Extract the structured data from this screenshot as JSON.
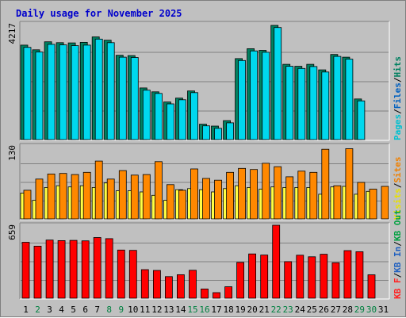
{
  "chart_data": {
    "type": "bar",
    "title": "Daily usage for November 2025",
    "days": [
      "1",
      "2",
      "3",
      "4",
      "5",
      "6",
      "7",
      "8",
      "9",
      "10",
      "11",
      "12",
      "13",
      "14",
      "15",
      "16",
      "17",
      "18",
      "19",
      "20",
      "21",
      "22",
      "23",
      "24",
      "25",
      "26",
      "27",
      "28",
      "29",
      "30",
      "31"
    ],
    "weekend_days": [
      "2",
      "8",
      "9",
      "15",
      "16",
      "22",
      "23",
      "29",
      "30"
    ],
    "colors": {
      "title": "#0000cc",
      "day_label": "#000000",
      "weekend_label": "#008040",
      "slash": "#000000"
    },
    "panels": [
      {
        "ymax_label": "4217",
        "ymax": 4217,
        "legend": [
          {
            "label": "Pages",
            "color": "#00c0d0"
          },
          {
            "label": "Files",
            "color": "#0060c0"
          },
          {
            "label": "Hits",
            "color": "#008060"
          }
        ],
        "series": [
          {
            "name": "Hits",
            "color": "#008060",
            "values": [
              3440,
              3270,
              3560,
              3530,
              3520,
              3540,
              3740,
              3620,
              3070,
              3060,
              1880,
              1740,
              1370,
              1510,
              1770,
              560,
              490,
              690,
              2950,
              3310,
              3250,
              4160,
              2740,
              2670,
              2740,
              2540,
              3100,
              3000,
              1480,
              0,
              0
            ]
          },
          {
            "name": "Pages",
            "color": "#00d8ee",
            "values": [
              3360,
              3190,
              3470,
              3450,
              3420,
              3440,
              3660,
              3530,
              3000,
              2990,
              1800,
              1680,
              1300,
              1450,
              1710,
              500,
              410,
              610,
              2880,
              3230,
              3180,
              4080,
              2670,
              2590,
              2660,
              2460,
              3030,
              2930,
              1410,
              0,
              0
            ]
          }
        ]
      },
      {
        "ymax_label": "130",
        "ymax": 130,
        "legend": [
          {
            "label": "Visits",
            "color": "#e8e000"
          },
          {
            "label": "Sites",
            "color": "#f08000"
          }
        ],
        "series": [
          {
            "name": "Visits",
            "color": "#ffff44",
            "values": [
              46,
              33,
              56,
              59,
              57,
              59,
              56,
              64,
              50,
              50,
              48,
              42,
              33,
              52,
              54,
              52,
              48,
              54,
              59,
              56,
              53,
              57,
              56,
              56,
              56,
              44,
              57,
              58,
              44,
              49,
              0
            ]
          },
          {
            "name": "Sites",
            "color": "#ff8800",
            "values": [
              51,
              71,
              80,
              81,
              79,
              83,
              103,
              71,
              86,
              78,
              79,
              102,
              61,
              51,
              89,
              72,
              69,
              83,
              90,
              88,
              99,
              93,
              75,
              85,
              83,
              124,
              59,
              125,
              65,
              53,
              58
            ]
          }
        ]
      },
      {
        "ymax_label": "659",
        "ymax": 659,
        "legend": [
          {
            "label": "KB F",
            "color": "#ff2020"
          },
          {
            "label": "KB In",
            "color": "#2060c0"
          },
          {
            "label": "KB Out",
            "color": "#00a040"
          }
        ],
        "series": [
          {
            "name": "KB F",
            "color": "#ff0000",
            "values": [
              505,
              470,
              525,
              520,
              522,
              518,
              548,
              538,
              435,
              432,
              258,
              251,
              195,
              212,
              252,
              83,
              50,
              103,
              323,
              400,
              390,
              659,
              330,
              388,
              374,
              397,
              320,
              430,
              420,
              211,
              0
            ]
          }
        ]
      }
    ]
  }
}
